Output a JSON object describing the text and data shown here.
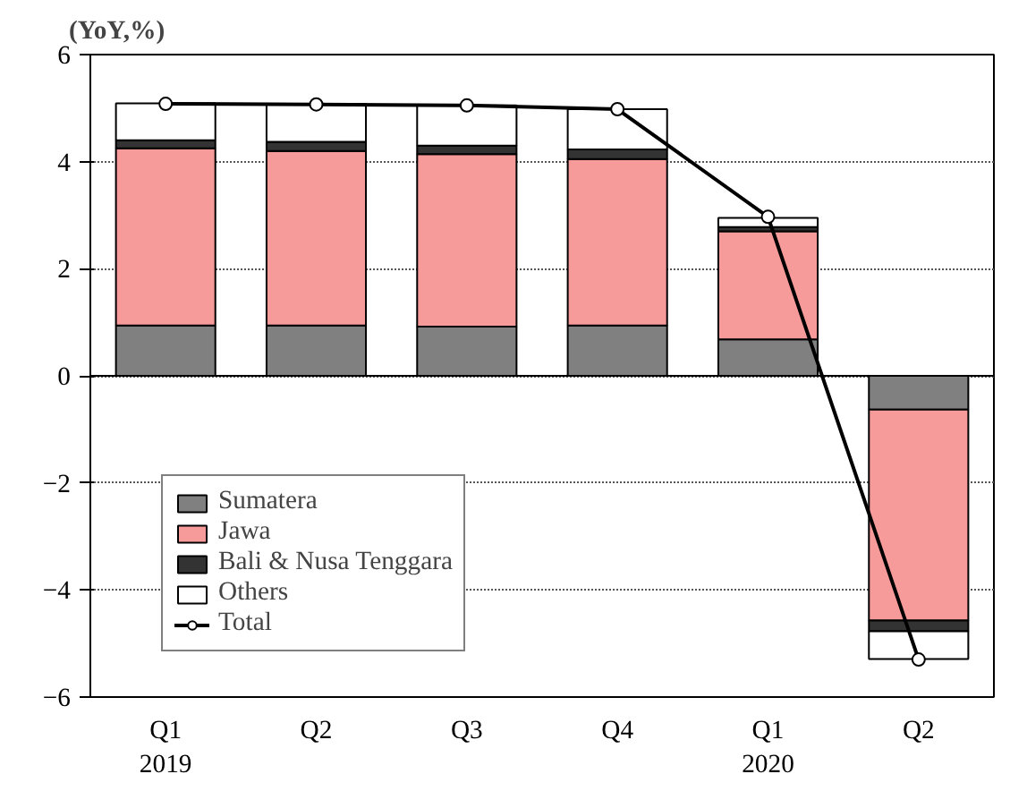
{
  "chart_data": {
    "type": "bar",
    "stacked": true,
    "ylabel": "(YoY,%)",
    "categories": [
      "Q1\n2019",
      "Q2",
      "Q3",
      "Q4",
      "Q1\n2020",
      "Q2"
    ],
    "series": [
      {
        "name": "Sumatera",
        "color": "#808080",
        "values": [
          0.94,
          0.94,
          0.92,
          0.94,
          0.68,
          -0.63
        ]
      },
      {
        "name": "Jawa",
        "color": "#f79a9a",
        "values": [
          3.31,
          3.26,
          3.22,
          3.11,
          2.02,
          -3.94
        ]
      },
      {
        "name": "Bali & Nusa Tenggara",
        "color": "#333333",
        "values": [
          0.15,
          0.17,
          0.16,
          0.18,
          0.08,
          -0.2
        ]
      },
      {
        "name": "Others",
        "color": "#ffffff",
        "values": [
          0.69,
          0.71,
          0.75,
          0.75,
          0.17,
          -0.52
        ]
      },
      {
        "name": "Total",
        "type": "line",
        "color": "#000000",
        "marker": "circle",
        "values": [
          5.08,
          5.07,
          5.05,
          4.98,
          2.97,
          -5.3
        ]
      }
    ],
    "ylim": [
      -6,
      6
    ],
    "yticks": [
      -6,
      -4,
      -2,
      0,
      2,
      4,
      6
    ],
    "grid": "y",
    "legend": "bottom left"
  }
}
